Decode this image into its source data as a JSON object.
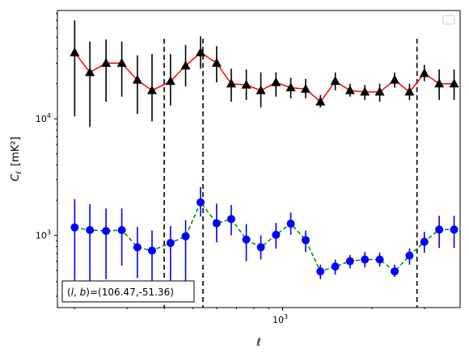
{
  "chart_data": {
    "type": "scatter",
    "xscale": "log",
    "yscale": "log",
    "xlim": [
      175,
      3950
    ],
    "ylim": [
      240,
      85000
    ],
    "xlabel": "ℓ",
    "ylabel_main": "C",
    "ylabel_sub": "ℓ",
    "ylabel_unit": "[mK²]",
    "xticks": [
      {
        "value": 1000,
        "base": "10",
        "exp": "3"
      }
    ],
    "yticks": [
      {
        "value": 1000,
        "base": "10",
        "exp": "3"
      },
      {
        "value": 10000,
        "base": "10",
        "exp": "4"
      }
    ],
    "annotation": "(l, b)=(106.47,-51.36)",
    "annotation_parts": {
      "l": "l",
      "b": "b",
      "value": "=(106.47,-51.36)"
    },
    "vlines": [
      400,
      540,
      2830
    ],
    "legend": {
      "placement": "top-right",
      "entries": []
    },
    "series": [
      {
        "marker": "triangle",
        "color": "#000000",
        "line_color": "#ff0000",
        "line_style": "solid",
        "x": [
          200,
          225,
          255,
          288,
          325,
          364,
          420,
          472,
          530,
          600,
          672,
          755,
          845,
          950,
          1065,
          1195,
          1340,
          1503,
          1685,
          1890,
          2120,
          2380,
          2670,
          2995,
          3360,
          3770
        ],
        "y": [
          37000,
          25000,
          30000,
          30000,
          21500,
          17500,
          21000,
          28500,
          37000,
          30000,
          20000,
          19500,
          17500,
          20500,
          18500,
          18000,
          14000,
          21000,
          17500,
          17000,
          17000,
          21500,
          17000,
          24500,
          20000,
          20000
        ],
        "err_lo": [
          10500,
          8500,
          14000,
          15500,
          11000,
          9500,
          13000,
          19000,
          27000,
          20500,
          14000,
          14500,
          12500,
          15500,
          15000,
          15000,
          12500,
          17500,
          15500,
          14500,
          14000,
          18500,
          14500,
          21000,
          14500,
          14500
        ],
        "err_hi": [
          70000,
          46000,
          48000,
          46000,
          35000,
          36000,
          36000,
          43000,
          51000,
          42000,
          27000,
          26500,
          25000,
          25000,
          22500,
          22000,
          16000,
          25000,
          20000,
          19500,
          20000,
          25000,
          20000,
          29000,
          26500,
          26500
        ]
      },
      {
        "marker": "circle",
        "color": "#0000ff",
        "line_color": "#008000",
        "line_style": "dashed",
        "x": [
          200,
          225,
          255,
          288,
          325,
          364,
          420,
          472,
          530,
          600,
          672,
          755,
          845,
          950,
          1065,
          1195,
          1340,
          1503,
          1685,
          1890,
          2120,
          2380,
          2670,
          2995,
          3360,
          3770
        ],
        "y": [
          1170,
          1110,
          1090,
          1110,
          790,
          740,
          860,
          980,
          1920,
          1270,
          1380,
          920,
          790,
          1010,
          1260,
          910,
          490,
          540,
          600,
          620,
          620,
          490,
          670,
          880,
          1120,
          1120
        ],
        "err_lo": [
          320,
          300,
          420,
          550,
          430,
          400,
          320,
          330,
          1450,
          870,
          1000,
          600,
          620,
          770,
          1010,
          720,
          420,
          460,
          520,
          530,
          540,
          440,
          560,
          710,
          780,
          780
        ],
        "err_hi": [
          2050,
          1850,
          1700,
          1700,
          1180,
          1100,
          1200,
          1350,
          2600,
          1870,
          1820,
          1250,
          1000,
          1280,
          1570,
          1100,
          560,
          620,
          680,
          720,
          710,
          560,
          770,
          1070,
          1470,
          1470
        ]
      }
    ]
  }
}
